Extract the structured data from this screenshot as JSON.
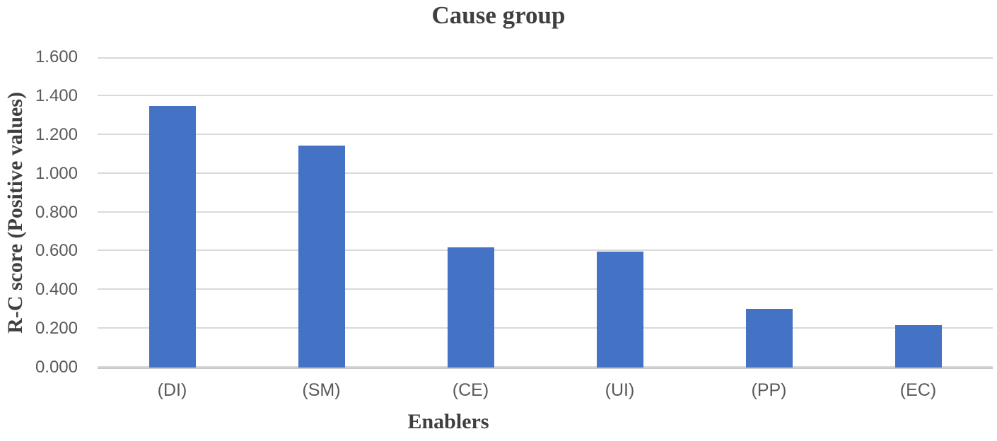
{
  "chart_data": {
    "type": "bar",
    "title": "Cause group",
    "xlabel": "Enablers",
    "ylabel": "R-C score (Positive values)",
    "categories": [
      "(DI)",
      "(SM)",
      "(CE)",
      "(UI)",
      "(PP)",
      "(EC)"
    ],
    "values": [
      1.35,
      1.143,
      0.621,
      0.596,
      0.304,
      0.217
    ],
    "ylim": [
      0,
      1.6
    ],
    "ytick_step": 0.2,
    "ytick_labels": [
      "0.000",
      "0.200",
      "0.400",
      "0.600",
      "0.800",
      "1.000",
      "1.200",
      "1.400",
      "1.600"
    ],
    "grid": true,
    "legend": false,
    "colors": {
      "bar": "#4472c4",
      "gridline": "#d9d9d9",
      "axis_line": "#c8c6c6",
      "tick_text": "#595959",
      "title_text": "#3f3f3f",
      "background": "#ffffff"
    }
  }
}
